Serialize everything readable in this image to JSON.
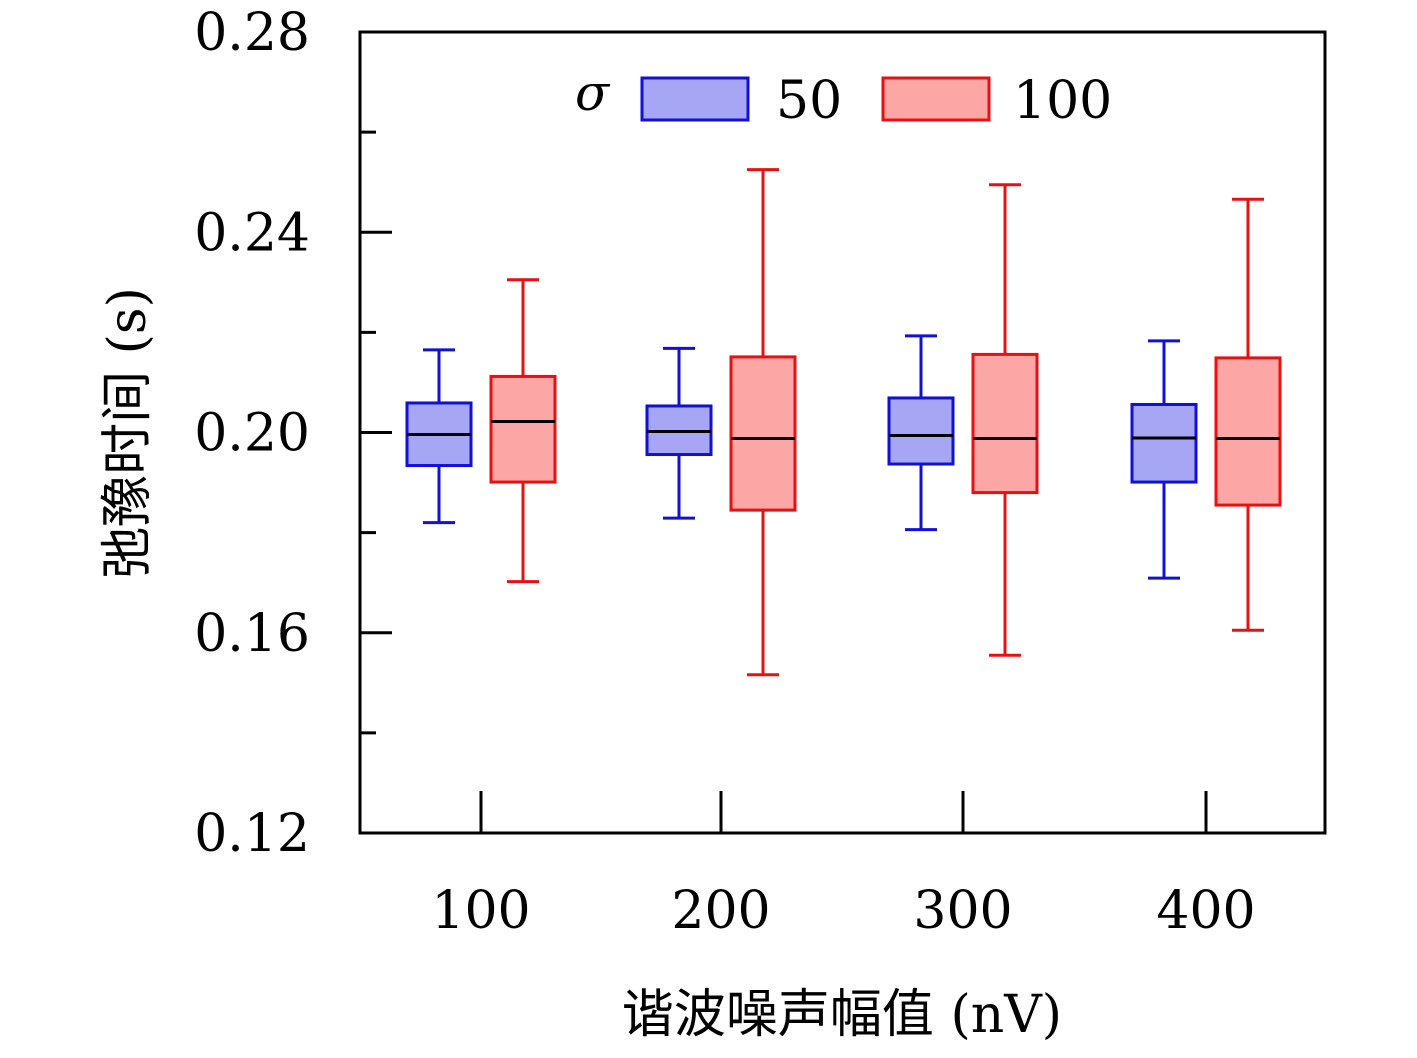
{
  "chart_data": {
    "type": "box",
    "xlabel": "谐波噪声幅值 (nV)",
    "ylabel": "弛豫时间 (s)",
    "ylim": [
      0.12,
      0.28
    ],
    "yticks": [
      "0.12",
      "0.16",
      "0.20",
      "0.24",
      "0.28"
    ],
    "categories": [
      "100",
      "200",
      "300",
      "400"
    ],
    "legend": {
      "title": "σ",
      "placement": "top-center",
      "entries": [
        "50",
        "100"
      ]
    },
    "series": [
      {
        "name": "50",
        "color": "#1010d8",
        "fill": "#a6a6f4",
        "boxes": [
          {
            "min": 0.182,
            "q1": 0.1934,
            "median": 0.1996,
            "q3": 0.2059,
            "max": 0.2165
          },
          {
            "min": 0.1829,
            "q1": 0.1956,
            "median": 0.2002,
            "q3": 0.2053,
            "max": 0.2168
          },
          {
            "min": 0.1806,
            "q1": 0.1937,
            "median": 0.1994,
            "q3": 0.2069,
            "max": 0.2193
          },
          {
            "min": 0.1709,
            "q1": 0.1901,
            "median": 0.1989,
            "q3": 0.2056,
            "max": 0.2183
          }
        ]
      },
      {
        "name": "100",
        "color": "#e81010",
        "fill": "#fca6a6",
        "boxes": [
          {
            "min": 0.1702,
            "q1": 0.1901,
            "median": 0.2022,
            "q3": 0.2112,
            "max": 0.2305
          },
          {
            "min": 0.1516,
            "q1": 0.1845,
            "median": 0.1988,
            "q3": 0.2151,
            "max": 0.2525
          },
          {
            "min": 0.1555,
            "q1": 0.188,
            "median": 0.1988,
            "q3": 0.2156,
            "max": 0.2495
          },
          {
            "min": 0.1605,
            "q1": 0.1855,
            "median": 0.1988,
            "q3": 0.2149,
            "max": 0.2466
          }
        ]
      }
    ]
  }
}
